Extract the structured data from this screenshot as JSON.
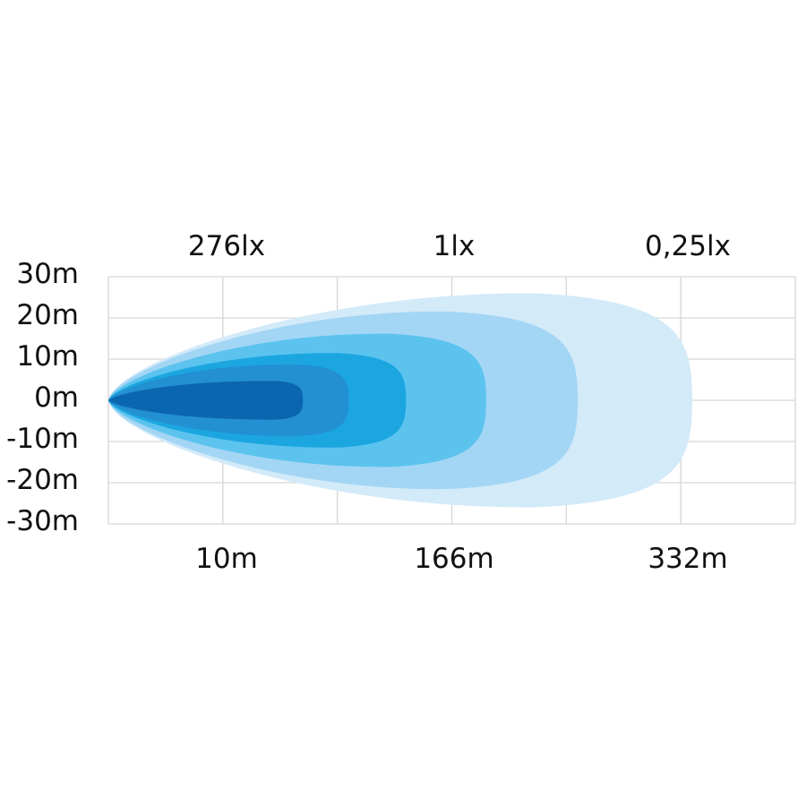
{
  "chart_data": {
    "type": "area",
    "title": "",
    "top_labels": [
      "276lx",
      "1lx",
      "0,25lx"
    ],
    "bottom_labels": [
      "10m",
      "166m",
      "332m"
    ],
    "y_ticks": [
      "30m",
      "20m",
      "10m",
      "0m",
      "-10m",
      "-20m",
      "-30m"
    ],
    "ylim": [
      -30,
      30
    ],
    "x_grid_columns": 6,
    "grid": true,
    "contours": [
      {
        "reach_columns": 5.1,
        "half_width_m": 26.5,
        "color": "#d3eaf9"
      },
      {
        "reach_columns": 4.1,
        "half_width_m": 22,
        "color": "#a3d6f4"
      },
      {
        "reach_columns": 3.3,
        "half_width_m": 16.5,
        "color": "#5cc3ef"
      },
      {
        "reach_columns": 2.6,
        "half_width_m": 11.7,
        "color": "#1ba6e0"
      },
      {
        "reach_columns": 2.1,
        "half_width_m": 8.9,
        "color": "#2390d1"
      },
      {
        "reach_columns": 1.7,
        "half_width_m": 4.8,
        "color": "#0b66b0"
      }
    ]
  }
}
